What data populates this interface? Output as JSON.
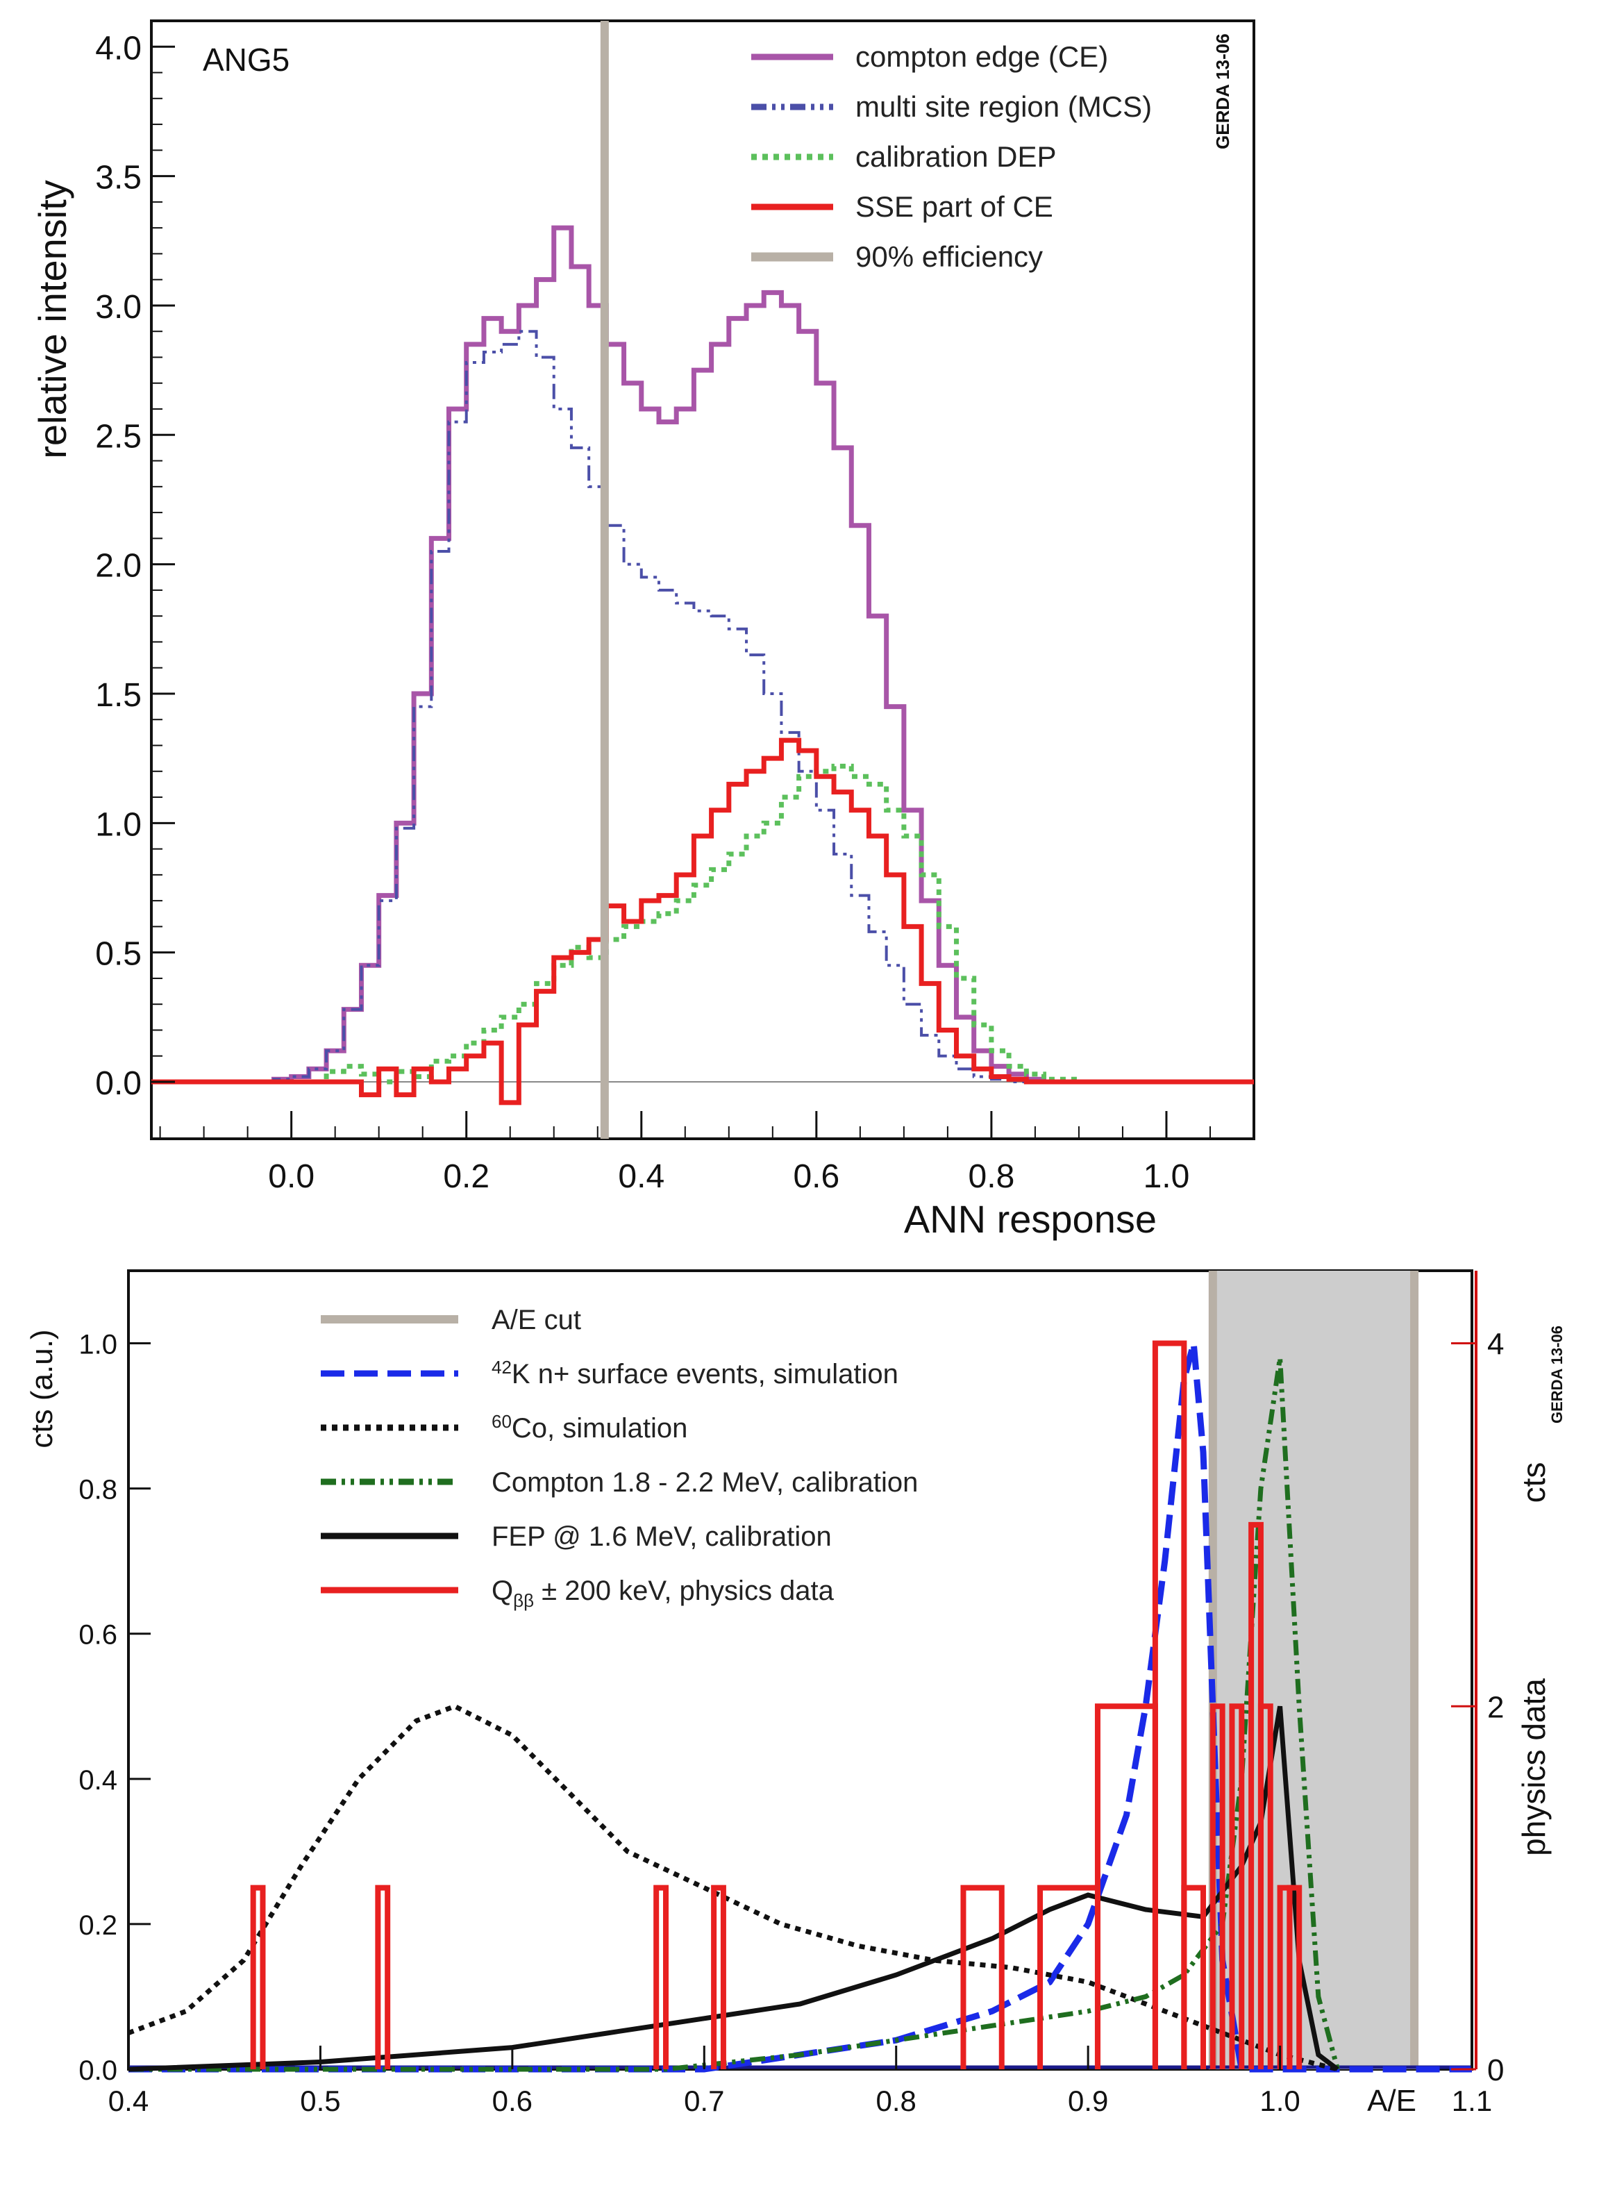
{
  "colors": {
    "ce": "#a855a8",
    "mcs": "#4b4fa8",
    "dep": "#5cc05c",
    "sse": "#e82020",
    "eff": "#b8b0a6",
    "ae_cut": "#b8b0a6",
    "ae_band": "#cdcdcd",
    "k42": "#1a2ae8",
    "co60": "#111111",
    "compton": "#1f6e1f",
    "fep": "#111111",
    "qbb": "#e82020",
    "right_axis": "#d01010"
  },
  "chart_data": [
    {
      "type": "line",
      "panel": "top",
      "xlabel": "ANN response",
      "ylabel": "relative intensity",
      "panel_label": "ANG5",
      "watermark": "GERDA 13-06",
      "xlim": [
        -0.16,
        1.1
      ],
      "ylim": [
        -0.22,
        4.1
      ],
      "xticks": [
        0.0,
        0.2,
        0.4,
        0.6,
        0.8,
        1.0
      ],
      "xtick_labels": [
        "0.0",
        "0.2",
        "0.4",
        "0.6",
        "0.8",
        "1.0"
      ],
      "yticks": [
        0.0,
        0.5,
        1.0,
        1.5,
        2.0,
        2.5,
        3.0,
        3.5,
        4.0
      ],
      "ytick_labels": [
        "0.0",
        "0.5",
        "1.0",
        "1.5",
        "2.0",
        "2.5",
        "3.0",
        "3.5",
        "4.0"
      ],
      "efficiency_line_x": 0.358,
      "bin_edges_start": -0.16,
      "bin_width": 0.02,
      "series": [
        {
          "name": "compton edge (CE)",
          "key": "ce",
          "style": "solid",
          "values": [
            0.0,
            0.0,
            0.0,
            0.0,
            0.0,
            0.0,
            0.0,
            0.01,
            0.02,
            0.05,
            0.12,
            0.28,
            0.45,
            0.72,
            1.0,
            1.5,
            2.1,
            2.6,
            2.85,
            2.95,
            2.9,
            3.0,
            3.1,
            3.3,
            3.15,
            3.0,
            2.85,
            2.7,
            2.6,
            2.55,
            2.6,
            2.75,
            2.85,
            2.95,
            3.0,
            3.05,
            3.0,
            2.9,
            2.7,
            2.45,
            2.15,
            1.8,
            1.45,
            1.05,
            0.7,
            0.45,
            0.25,
            0.12,
            0.06,
            0.03,
            0.01,
            0.0,
            0.0,
            0.0,
            0.0,
            0.0,
            0.0,
            0.0,
            0.0,
            0.0,
            0.0,
            0.0,
            0.0
          ]
        },
        {
          "name": "multi site region (MCS)",
          "key": "mcs",
          "style": "dashdot",
          "values": [
            0.0,
            0.0,
            0.0,
            0.0,
            0.0,
            0.0,
            0.0,
            0.01,
            0.02,
            0.05,
            0.12,
            0.28,
            0.45,
            0.7,
            0.98,
            1.45,
            2.05,
            2.55,
            2.78,
            2.82,
            2.85,
            2.9,
            2.8,
            2.6,
            2.45,
            2.3,
            2.15,
            2.0,
            1.95,
            1.9,
            1.85,
            1.82,
            1.8,
            1.75,
            1.65,
            1.5,
            1.35,
            1.2,
            1.05,
            0.88,
            0.72,
            0.58,
            0.45,
            0.3,
            0.18,
            0.1,
            0.05,
            0.02,
            0.01,
            0.0,
            0.0,
            0.0,
            0.0,
            0.0,
            0.0,
            0.0,
            0.0,
            0.0,
            0.0,
            0.0,
            0.0,
            0.0,
            0.0
          ]
        },
        {
          "name": "calibration DEP",
          "key": "dep",
          "style": "dotted",
          "values": [
            0.0,
            0.0,
            0.0,
            0.0,
            0.0,
            0.0,
            0.0,
            0.0,
            0.0,
            0.0,
            0.04,
            0.06,
            0.03,
            0.0,
            0.04,
            0.02,
            0.08,
            0.1,
            0.15,
            0.2,
            0.25,
            0.3,
            0.38,
            0.45,
            0.52,
            0.48,
            0.55,
            0.6,
            0.62,
            0.65,
            0.7,
            0.76,
            0.82,
            0.88,
            0.95,
            1.0,
            1.1,
            1.18,
            1.2,
            1.22,
            1.18,
            1.15,
            1.05,
            0.95,
            0.8,
            0.6,
            0.4,
            0.22,
            0.12,
            0.06,
            0.03,
            0.01,
            0.01,
            0.0,
            0.0,
            0.0,
            0.0,
            0.0,
            0.0,
            0.0,
            0.0,
            0.0,
            0.0
          ]
        },
        {
          "name": "SSE part of CE",
          "key": "sse",
          "style": "solid",
          "values": [
            0.0,
            0.0,
            0.0,
            0.0,
            0.0,
            0.0,
            0.0,
            0.0,
            0.0,
            0.0,
            0.0,
            0.0,
            -0.05,
            0.05,
            -0.05,
            0.05,
            0.0,
            0.05,
            0.1,
            0.15,
            -0.08,
            0.22,
            0.35,
            0.48,
            0.5,
            0.55,
            0.68,
            0.62,
            0.7,
            0.72,
            0.8,
            0.95,
            1.05,
            1.15,
            1.2,
            1.25,
            1.32,
            1.28,
            1.18,
            1.12,
            1.05,
            0.95,
            0.8,
            0.6,
            0.38,
            0.2,
            0.1,
            0.05,
            0.02,
            0.01,
            0.0,
            0.0,
            0.0,
            0.0,
            0.0,
            0.0,
            0.0,
            0.0,
            0.0,
            0.0,
            0.0,
            0.0,
            0.0
          ]
        }
      ],
      "legend": [
        {
          "label": "compton edge (CE)",
          "key": "ce",
          "style": "solid"
        },
        {
          "label": "multi site region (MCS)",
          "key": "mcs",
          "style": "dashdot"
        },
        {
          "label": "calibration DEP",
          "key": "dep",
          "style": "dotted"
        },
        {
          "label": "SSE part of CE",
          "key": "sse",
          "style": "solid"
        },
        {
          "label": "90% efficiency",
          "key": "eff",
          "style": "thick"
        }
      ],
      "legend_position": "top-right"
    },
    {
      "type": "line",
      "panel": "bottom",
      "xlabel": "A/E",
      "ylabel": "cts (a.u.)",
      "right_ylabel": "physics data",
      "right_axis_title": "cts",
      "watermark": "GERDA 13-06",
      "xlim": [
        0.4,
        1.1
      ],
      "ylim": [
        0.0,
        1.1
      ],
      "right_ylim": [
        0,
        4.4
      ],
      "xticks": [
        0.4,
        0.5,
        0.6,
        0.7,
        0.8,
        0.9,
        1.0,
        1.1
      ],
      "xtick_labels": [
        "0.4",
        "0.5",
        "0.6",
        "0.7",
        "0.8",
        "0.9",
        "1.0",
        "1.1"
      ],
      "yticks": [
        0.0,
        0.2,
        0.4,
        0.6,
        0.8,
        1.0
      ],
      "ytick_labels": [
        "0.0",
        "0.2",
        "0.4",
        "0.6",
        "0.8",
        "1.0"
      ],
      "right_yticks": [
        0,
        2,
        4
      ],
      "right_ytick_labels": [
        "0",
        "2",
        "4"
      ],
      "ae_cut_band": [
        0.965,
        1.07
      ],
      "series": [
        {
          "name": "42K n+ surface events, simulation",
          "key": "k42",
          "style": "dashed",
          "x": [
            0.4,
            0.7,
            0.75,
            0.8,
            0.85,
            0.88,
            0.9,
            0.92,
            0.93,
            0.94,
            0.95,
            0.955,
            0.96,
            0.965,
            0.97,
            0.98,
            1.0,
            1.1
          ],
          "y": [
            0.0,
            0.0,
            0.02,
            0.04,
            0.08,
            0.12,
            0.2,
            0.35,
            0.5,
            0.7,
            0.95,
            1.0,
            0.85,
            0.5,
            0.15,
            0.0,
            0.0,
            0.0
          ]
        },
        {
          "name": "60Co, simulation",
          "key": "co60",
          "style": "dotted",
          "x": [
            0.4,
            0.43,
            0.46,
            0.49,
            0.52,
            0.55,
            0.57,
            0.6,
            0.63,
            0.66,
            0.7,
            0.74,
            0.78,
            0.82,
            0.86,
            0.9,
            0.94,
            0.97,
            1.0,
            1.03
          ],
          "y": [
            0.05,
            0.08,
            0.15,
            0.28,
            0.4,
            0.48,
            0.5,
            0.46,
            0.38,
            0.3,
            0.25,
            0.2,
            0.17,
            0.15,
            0.14,
            0.12,
            0.08,
            0.05,
            0.02,
            0.0
          ]
        },
        {
          "name": "Compton 1.8 - 2.2 MeV, calibration",
          "key": "compton",
          "style": "dashdot",
          "x": [
            0.4,
            0.68,
            0.75,
            0.8,
            0.85,
            0.9,
            0.93,
            0.95,
            0.97,
            0.98,
            0.99,
            1.0,
            1.01,
            1.02,
            1.03
          ],
          "y": [
            0.0,
            0.0,
            0.02,
            0.04,
            0.06,
            0.08,
            0.1,
            0.13,
            0.2,
            0.4,
            0.8,
            0.98,
            0.5,
            0.1,
            0.0
          ]
        },
        {
          "name": "FEP @ 1.6 MeV, calibration",
          "key": "fep",
          "style": "solid",
          "x": [
            0.4,
            0.5,
            0.55,
            0.6,
            0.65,
            0.7,
            0.75,
            0.8,
            0.85,
            0.88,
            0.9,
            0.93,
            0.96,
            0.98,
            0.99,
            1.0,
            1.01,
            1.02,
            1.03
          ],
          "y": [
            0.0,
            0.01,
            0.02,
            0.03,
            0.05,
            0.07,
            0.09,
            0.13,
            0.18,
            0.22,
            0.24,
            0.22,
            0.21,
            0.28,
            0.34,
            0.5,
            0.15,
            0.02,
            0.0
          ]
        },
        {
          "name": "Qbb ± 200 keV, physics data",
          "key": "qbb",
          "style": "solid",
          "axis": "right",
          "bins": [
            {
              "x0": 0.465,
              "x1": 0.47,
              "v": 1
            },
            {
              "x0": 0.53,
              "x1": 0.535,
              "v": 1
            },
            {
              "x0": 0.675,
              "x1": 0.68,
              "v": 1
            },
            {
              "x0": 0.705,
              "x1": 0.71,
              "v": 1
            },
            {
              "x0": 0.835,
              "x1": 0.855,
              "v": 1
            },
            {
              "x0": 0.875,
              "x1": 0.905,
              "v": 1
            },
            {
              "x0": 0.905,
              "x1": 0.935,
              "v": 2
            },
            {
              "x0": 0.935,
              "x1": 0.95,
              "v": 4
            },
            {
              "x0": 0.95,
              "x1": 0.96,
              "v": 1
            },
            {
              "x0": 0.965,
              "x1": 0.97,
              "v": 2
            },
            {
              "x0": 0.975,
              "x1": 0.98,
              "v": 2
            },
            {
              "x0": 0.985,
              "x1": 0.99,
              "v": 3
            },
            {
              "x0": 0.99,
              "x1": 0.995,
              "v": 2
            },
            {
              "x0": 1.0,
              "x1": 1.005,
              "v": 1
            },
            {
              "x0": 1.005,
              "x1": 1.01,
              "v": 1
            }
          ]
        }
      ],
      "legend": [
        {
          "label": "A/E cut",
          "key": "ae_cut",
          "style": "thick"
        },
        {
          "label_sup": "42",
          "label": "K n+ surface events, simulation",
          "key": "k42",
          "style": "dashed"
        },
        {
          "label_sup": "60",
          "label": "Co, simulation",
          "key": "co60",
          "style": "dotted"
        },
        {
          "label": "Compton 1.8 - 2.2 MeV, calibration",
          "key": "compton",
          "style": "dashdot"
        },
        {
          "label": "FEP @ 1.6 MeV, calibration",
          "key": "fep",
          "style": "solid"
        },
        {
          "label": "Q",
          "label_sub": "ββ",
          "label_tail": " ± 200 keV, physics data",
          "key": "qbb",
          "style": "solid"
        }
      ],
      "legend_position": "top-left"
    }
  ]
}
